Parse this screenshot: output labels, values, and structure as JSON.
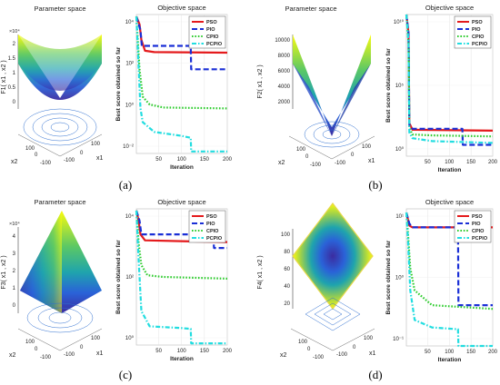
{
  "chart_data": [
    {
      "id": "a",
      "caption": "(a)",
      "surface": {
        "title": "Parameter space",
        "zlabel": "F1( x1 , x2 )",
        "z_multiplier": "×10⁴",
        "xlabel": "x1",
        "ylabel": "x2",
        "x_ticks": [
          "-100",
          "0",
          "100"
        ],
        "y_ticks": [
          "100",
          "0",
          "-100"
        ],
        "z_ticks": [
          "2",
          "1.5",
          "1",
          "0.5",
          "0"
        ],
        "shape": "bowl"
      },
      "convergence": {
        "type": "line",
        "title": "Objective space",
        "xlabel": "Iteration",
        "ylabel": "Best score obtained so far",
        "x_ticks": [
          "50",
          "100",
          "150",
          "200"
        ],
        "y_ticks": [
          "10⁴",
          "10²",
          "10⁰",
          "10⁻²"
        ],
        "y_scale": "log",
        "xlim": [
          1,
          200
        ],
        "ylim_log10": [
          -2.3,
          4.8
        ],
        "legend": [
          "PSO",
          "PIO",
          "CPIO",
          "PCPIO"
        ],
        "legend_position": "top-right",
        "series": [
          {
            "name": "PSO",
            "color": "#e41a1c",
            "style": "solid",
            "points": [
              [
                1,
                4.7
              ],
              [
                8,
                4.3
              ],
              [
                12,
                3.5
              ],
              [
                20,
                2.95
              ],
              [
                40,
                2.88
              ],
              [
                200,
                2.85
              ]
            ]
          },
          {
            "name": "PIO",
            "color": "#1a2fd6",
            "style": "dashed",
            "points": [
              [
                1,
                4.7
              ],
              [
                10,
                4.0
              ],
              [
                13,
                3.2
              ],
              [
                120,
                3.2
              ],
              [
                121,
                2.0
              ],
              [
                200,
                2.0
              ]
            ]
          },
          {
            "name": "CPIO",
            "color": "#2ecc2e",
            "style": "dotted",
            "points": [
              [
                1,
                4.7
              ],
              [
                8,
                2.0
              ],
              [
                15,
                0.6
              ],
              [
                30,
                0.2
              ],
              [
                60,
                0.05
              ],
              [
                200,
                0.0
              ]
            ]
          },
          {
            "name": "PCPIO",
            "color": "#22dde0",
            "style": "dashdot",
            "points": [
              [
                1,
                4.7
              ],
              [
                10,
                0.0
              ],
              [
                15,
                -0.7
              ],
              [
                40,
                -1.2
              ],
              [
                100,
                -1.4
              ],
              [
                120,
                -1.5
              ],
              [
                121,
                -2.2
              ],
              [
                200,
                -2.2
              ]
            ]
          }
        ]
      }
    },
    {
      "id": "b",
      "caption": "(b)",
      "surface": {
        "title": "Parameter space",
        "zlabel": "F2( x1 , x2 )",
        "z_multiplier": "",
        "xlabel": "x1",
        "ylabel": "x2",
        "x_ticks": [
          "-100",
          "0",
          "100"
        ],
        "y_ticks": [
          "100",
          "0",
          "-100"
        ],
        "z_ticks": [
          "10000",
          "8000",
          "6000",
          "4000",
          "2000"
        ],
        "shape": "pyramid"
      },
      "convergence": {
        "type": "line",
        "title": "Objective space",
        "xlabel": "Iteration",
        "ylabel": "Best score obtained so far",
        "x_ticks": [
          "50",
          "100",
          "150",
          "200"
        ],
        "y_ticks": [
          "10¹⁰",
          "10⁵",
          "10⁰"
        ],
        "y_scale": "log",
        "xlim": [
          1,
          200
        ],
        "ylim_log10": [
          -1,
          14
        ],
        "legend": [
          "PSO",
          "PIO",
          "CPIO",
          "PCPIO"
        ],
        "legend_position": "top-right",
        "series": [
          {
            "name": "PSO",
            "color": "#e41a1c",
            "style": "solid",
            "points": [
              [
                1,
                14
              ],
              [
                6,
                12
              ],
              [
                8,
                2.5
              ],
              [
                15,
                1.8
              ],
              [
                200,
                1.7
              ]
            ]
          },
          {
            "name": "PIO",
            "color": "#1a2fd6",
            "style": "dashed",
            "points": [
              [
                1,
                14
              ],
              [
                6,
                12
              ],
              [
                8,
                2.3
              ],
              [
                15,
                1.9
              ],
              [
                130,
                1.9
              ],
              [
                131,
                0.2
              ],
              [
                200,
                0.2
              ]
            ]
          },
          {
            "name": "CPIO",
            "color": "#2ecc2e",
            "style": "dotted",
            "points": [
              [
                1,
                14
              ],
              [
                6,
                11
              ],
              [
                8,
                2.0
              ],
              [
                15,
                1.3
              ],
              [
                60,
                1.2
              ],
              [
                200,
                1.1
              ]
            ]
          },
          {
            "name": "PCPIO",
            "color": "#22dde0",
            "style": "dashdot",
            "points": [
              [
                1,
                14
              ],
              [
                6,
                11
              ],
              [
                8,
                1.5
              ],
              [
                15,
                0.9
              ],
              [
                60,
                0.6
              ],
              [
                200,
                0.4
              ]
            ]
          }
        ]
      }
    },
    {
      "id": "c",
      "caption": "(c)",
      "surface": {
        "title": "Parameter space",
        "zlabel": "F3( x1 , x2 )",
        "z_multiplier": "×10⁴",
        "xlabel": "x1",
        "ylabel": "x2",
        "x_ticks": [
          "-100",
          "0",
          "100"
        ],
        "y_ticks": [
          "100",
          "0",
          "-100"
        ],
        "z_ticks": [
          "4",
          "3",
          "2",
          "1",
          "0"
        ],
        "shape": "ridge"
      },
      "convergence": {
        "type": "line",
        "title": "Objective space",
        "xlabel": "Iteration",
        "ylabel": "Best score obtained so far",
        "x_ticks": [
          "50",
          "100",
          "150",
          "200"
        ],
        "y_ticks": [
          "10⁴",
          "10²",
          "10⁰"
        ],
        "y_scale": "log",
        "xlim": [
          1,
          200
        ],
        "ylim_log10": [
          -2.5,
          5.5
        ],
        "legend": [
          "PSO",
          "PIO",
          "CPIO",
          "PCPIO"
        ],
        "legend_position": "top-right",
        "series": [
          {
            "name": "PSO",
            "color": "#e41a1c",
            "style": "solid",
            "points": [
              [
                1,
                5.4
              ],
              [
                6,
                4.8
              ],
              [
                10,
                4.0
              ],
              [
                20,
                3.65
              ],
              [
                100,
                3.6
              ],
              [
                200,
                3.55
              ]
            ]
          },
          {
            "name": "PIO",
            "color": "#1a2fd6",
            "style": "dashed",
            "points": [
              [
                1,
                5.4
              ],
              [
                8,
                4.8
              ],
              [
                12,
                4.0
              ],
              [
                120,
                4.0
              ],
              [
                121,
                3.6
              ],
              [
                170,
                3.6
              ],
              [
                171,
                3.2
              ],
              [
                200,
                3.2
              ]
            ]
          },
          {
            "name": "CPIO",
            "color": "#2ecc2e",
            "style": "dotted",
            "points": [
              [
                1,
                5.4
              ],
              [
                6,
                3.5
              ],
              [
                12,
                2.2
              ],
              [
                25,
                1.6
              ],
              [
                60,
                1.5
              ],
              [
                200,
                1.4
              ]
            ]
          },
          {
            "name": "PCPIO",
            "color": "#22dde0",
            "style": "dashdot",
            "points": [
              [
                1,
                5.4
              ],
              [
                6,
                2.5
              ],
              [
                12,
                -0.5
              ],
              [
                30,
                -1.4
              ],
              [
                100,
                -1.5
              ],
              [
                120,
                -1.55
              ],
              [
                121,
                -2.4
              ],
              [
                200,
                -2.4
              ]
            ]
          }
        ]
      }
    },
    {
      "id": "d",
      "caption": "(d)",
      "surface": {
        "title": "",
        "zlabel": "F4( x1 , x2 )",
        "z_multiplier": "",
        "xlabel": "x1",
        "ylabel": "x2",
        "x_ticks": [
          "-100",
          "0",
          "100"
        ],
        "y_ticks": [
          "100",
          "0",
          "-100"
        ],
        "z_ticks": [
          "100",
          "80",
          "60",
          "40",
          "20"
        ],
        "shape": "inverted-pyramid"
      },
      "convergence": {
        "type": "line",
        "title": "Objective space",
        "xlabel": "Iteration",
        "ylabel": "Best score obtained so far",
        "x_ticks": [
          "50",
          "100",
          "150",
          "200"
        ],
        "y_ticks": [
          "10¹",
          "10⁰",
          "10⁻¹"
        ],
        "y_scale": "log",
        "xlim": [
          1,
          200
        ],
        "ylim_log10": [
          -1.5,
          2.2
        ],
        "legend": [
          "PSO",
          "PIO",
          "CPIO",
          "PCPIO"
        ],
        "legend_position": "top-right",
        "series": [
          {
            "name": "PSO",
            "color": "#e41a1c",
            "style": "solid",
            "points": [
              [
                1,
                2.1
              ],
              [
                8,
                1.75
              ],
              [
                15,
                1.7
              ],
              [
                200,
                1.7
              ]
            ]
          },
          {
            "name": "PIO",
            "color": "#1a2fd6",
            "style": "dashed",
            "points": [
              [
                1,
                2.1
              ],
              [
                8,
                1.8
              ],
              [
                15,
                1.7
              ],
              [
                120,
                1.7
              ],
              [
                121,
                -0.4
              ],
              [
                200,
                -0.4
              ]
            ]
          },
          {
            "name": "CPIO",
            "color": "#2ecc2e",
            "style": "dotted",
            "points": [
              [
                1,
                2.1
              ],
              [
                5,
                1.5
              ],
              [
                10,
                0.6
              ],
              [
                20,
                0.0
              ],
              [
                60,
                -0.4
              ],
              [
                200,
                -0.5
              ]
            ]
          },
          {
            "name": "PCPIO",
            "color": "#22dde0",
            "style": "dashdot",
            "points": [
              [
                1,
                2.1
              ],
              [
                5,
                1.3
              ],
              [
                10,
                0.0
              ],
              [
                20,
                -0.8
              ],
              [
                60,
                -1.0
              ],
              [
                120,
                -1.05
              ],
              [
                121,
                -1.5
              ],
              [
                200,
                -1.5
              ]
            ]
          }
        ]
      }
    }
  ]
}
